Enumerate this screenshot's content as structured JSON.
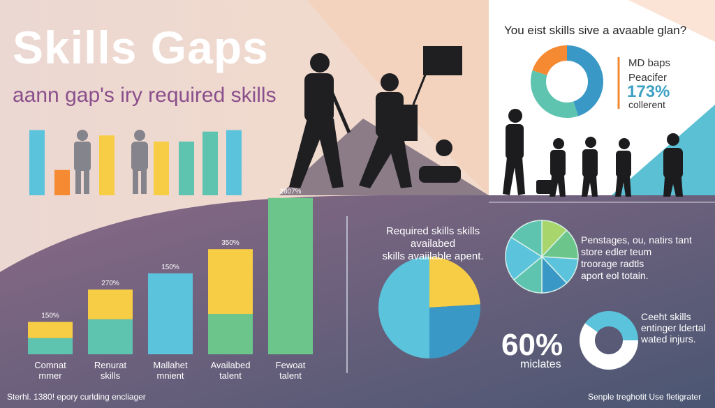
{
  "header": {
    "title": "Skills Gaps",
    "subtitle": "aann gap's iry required skills"
  },
  "top_right": {
    "question": "You eist skills sive a avaable glan?",
    "donut_label_1": "MD baps",
    "donut_label_2": "Peacifer",
    "donut_percent": "173%",
    "donut_sub": "collerent"
  },
  "pie_section": {
    "caption_1": "Required skills skills availabed",
    "caption_2": "skills avaiilable apent.",
    "pie2_lines": [
      "Penstages, ou, natirs tant",
      "store edler teum",
      "troorage radtls",
      "aport eol totain."
    ],
    "big_percent": "60%",
    "big_sub": "miclates",
    "ring_lines": [
      "Ceeht skills",
      "entinger ldertal",
      "wated injurs."
    ]
  },
  "footer": {
    "left": "Sterhl. 1380! epory curlding encliager",
    "right": "Senple treghotit Use fletigrater"
  },
  "colors": {
    "yellow": "#f7cd45",
    "teal": "#5ec4b0",
    "blue": "#5cc3dc",
    "green": "#6cc68c",
    "orange": "#f58a32",
    "lime": "#a8d66c",
    "ocean": "#3a98c6",
    "purple": "#8a4f8c"
  },
  "chart_data": [
    {
      "type": "bar",
      "categories": [
        "Comnat mmer",
        "Renurat skills",
        "Mallahet mnient",
        "Availabed talent",
        "Fewoat talent"
      ],
      "series": [
        {
          "values": [
            0.6,
            1.3,
            3.0,
            1.5,
            5.8
          ]
        },
        {
          "values": [
            0.6,
            1.1,
            0,
            2.4,
            0
          ]
        }
      ],
      "data_labels": [
        "150%",
        "270%",
        "150%",
        "350%",
        "2807%"
      ],
      "ylim": [
        0,
        6
      ]
    },
    {
      "type": "bar",
      "values": [
        0.85,
        0.33,
        0.78,
        0.7,
        0.7,
        0.83,
        0.85
      ],
      "bar_colors": [
        "blue",
        "orange",
        "yellow",
        "yellow",
        "teal",
        "teal",
        "blue"
      ],
      "ylim": [
        0,
        1
      ]
    },
    {
      "type": "pie",
      "donut": true,
      "values": [
        45,
        35,
        20
      ],
      "slice_colors": [
        "ocean",
        "teal",
        "orange"
      ]
    },
    {
      "type": "pie",
      "values": [
        24,
        26,
        50
      ],
      "slice_colors": [
        "yellow",
        "ocean",
        "blue"
      ]
    },
    {
      "type": "pie",
      "values": [
        12,
        14,
        12,
        12,
        14,
        20,
        16
      ],
      "slice_colors": [
        "lime",
        "green",
        "blue",
        "ocean",
        "teal",
        "blue",
        "teal"
      ]
    },
    {
      "type": "pie",
      "donut": true,
      "values": [
        60,
        40
      ],
      "slice_colors": [
        "white",
        "blue"
      ]
    }
  ]
}
